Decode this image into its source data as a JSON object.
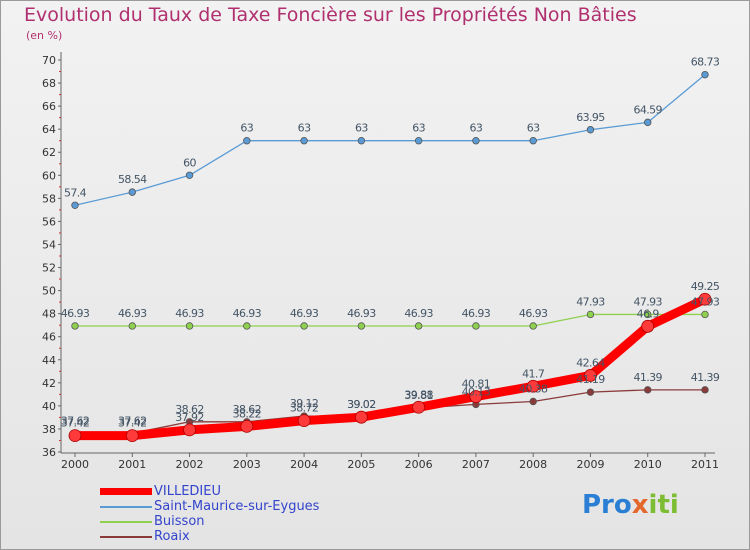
{
  "title": "Evolution du Taux de Taxe Foncière sur les Propriétés Non Bâties",
  "unit": "(en %)",
  "logo": "Proxiti",
  "chart_data": {
    "type": "line",
    "x": [
      "2000",
      "2001",
      "2002",
      "2003",
      "2004",
      "2005",
      "2006",
      "2007",
      "2008",
      "2009",
      "2010",
      "2011"
    ],
    "ylim": [
      36,
      70
    ],
    "yticks": [
      36,
      38,
      40,
      42,
      44,
      46,
      48,
      50,
      52,
      54,
      56,
      58,
      60,
      62,
      64,
      66,
      68,
      70
    ],
    "grid": false,
    "legend_position": "bottom-left",
    "series": [
      {
        "name": "VILLEDIEU",
        "color": "#ff0000",
        "values": [
          37.42,
          37.42,
          37.92,
          38.22,
          38.72,
          39.02,
          39.88,
          40.81,
          41.7,
          42.64,
          46.9,
          49.25
        ],
        "labels": [
          "37.42",
          "37.42",
          "37.92",
          "38.22",
          "38.72",
          "39.02",
          "39.88",
          "40.81",
          "41.7",
          "42.64",
          "46.9",
          "49.25"
        ]
      },
      {
        "name": "Saint-Maurice-sur-Eygues",
        "color": "#5a9bd5",
        "values": [
          57.4,
          58.54,
          60,
          63,
          63,
          63,
          63,
          63,
          63,
          63.95,
          64.59,
          68.73
        ],
        "labels": [
          "57.4",
          "58.54",
          "60",
          "63",
          "63",
          "63",
          "63",
          "63",
          "63",
          "63.95",
          "64.59",
          "68.73"
        ]
      },
      {
        "name": "Buisson",
        "color": "#8fd14f",
        "values": [
          46.93,
          46.93,
          46.93,
          46.93,
          46.93,
          46.93,
          46.93,
          46.93,
          46.93,
          47.93,
          47.93,
          47.93
        ],
        "labels": [
          "46.93",
          "46.93",
          "46.93",
          "46.93",
          "46.93",
          "46.93",
          "46.93",
          "46.93",
          "46.93",
          "47.93",
          "47.93",
          "47.93"
        ]
      },
      {
        "name": "Roaix",
        "color": "#8b3a3a",
        "values": [
          37.62,
          37.62,
          38.62,
          38.62,
          39.12,
          39.02,
          39.81,
          40.13,
          40.38,
          41.19,
          41.39,
          41.39
        ],
        "labels": [
          "37.62",
          "37.62",
          "38.62",
          "38.62",
          "39.12",
          "39.02",
          "39.81",
          "40.13",
          "40.38",
          "41.19",
          "41.39",
          "41.39"
        ]
      }
    ]
  }
}
